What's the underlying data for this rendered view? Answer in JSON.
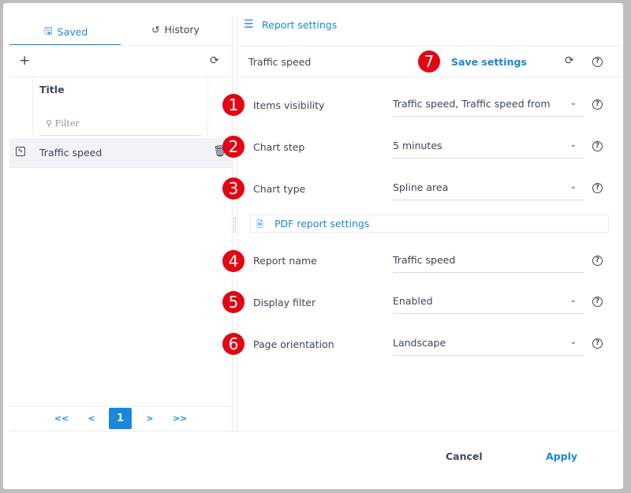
{
  "left_panel": {
    "tabs": [
      {
        "label": "Saved",
        "icon": "save-icon",
        "active": true
      },
      {
        "label": "History",
        "icon": "history-icon",
        "active": false
      }
    ],
    "toolbar": {
      "add_icon": "plus-icon",
      "refresh_icon": "refresh-icon"
    },
    "table": {
      "column_title": "Title",
      "filter_placeholder": "Filter",
      "rows": [
        {
          "title": "Traffic speed",
          "selected": true
        }
      ]
    },
    "pagination": {
      "first": "<<",
      "prev": "<",
      "current": "1",
      "next": ">",
      "last": ">>"
    }
  },
  "right_panel": {
    "header": "Report settings",
    "report_title": "Traffic speed",
    "save_label": "Save settings",
    "fields": [
      {
        "badge": "1",
        "label": "Items visibility",
        "value": "Traffic speed, Traffic speed from",
        "type": "select"
      },
      {
        "badge": "2",
        "label": "Chart step",
        "value": "5 minutes",
        "type": "select"
      },
      {
        "badge": "3",
        "label": "Chart type",
        "value": "Spline area",
        "type": "select"
      }
    ],
    "pdf_section": "PDF report settings",
    "pdf_fields": [
      {
        "badge": "4",
        "label": "Report name",
        "value": "Traffic speed",
        "type": "input"
      },
      {
        "badge": "5",
        "label": "Display filter",
        "value": "Enabled",
        "type": "select"
      },
      {
        "badge": "6",
        "label": "Page orientation",
        "value": "Landscape",
        "type": "select"
      }
    ],
    "save_badge": "7"
  },
  "footer": {
    "cancel": "Cancel",
    "apply": "Apply"
  },
  "colors": {
    "accent": "#1a86dc",
    "badge": "#e30613",
    "text": "#3c4657"
  }
}
